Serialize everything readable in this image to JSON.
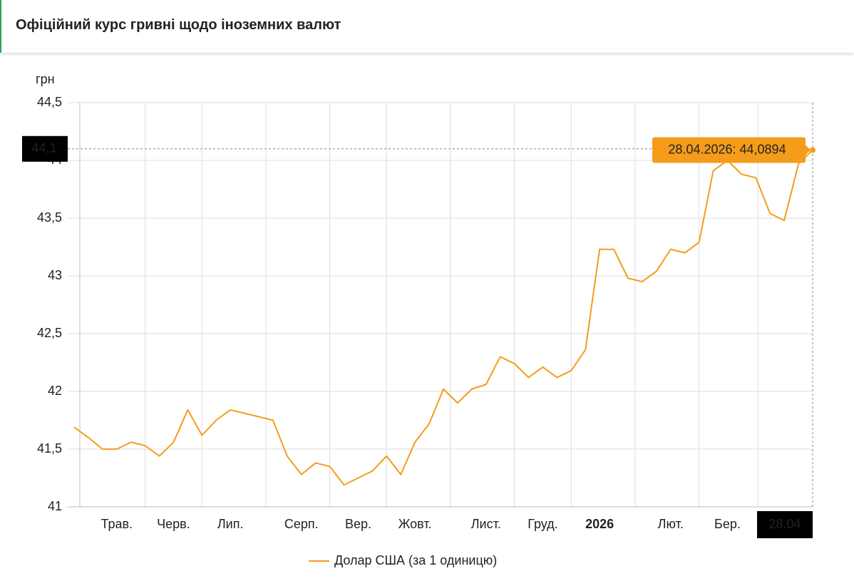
{
  "header": {
    "title": "Офіційний курс гривні щодо іноземних валют"
  },
  "chart_data": {
    "type": "line",
    "y_unit": "грн",
    "categories": [
      null,
      null,
      null,
      "Трав.",
      null,
      null,
      null,
      "Черв.",
      null,
      null,
      null,
      "Лип.",
      null,
      null,
      null,
      null,
      "Серп.",
      null,
      null,
      null,
      "Вер.",
      null,
      null,
      null,
      "Жовт.",
      null,
      null,
      null,
      null,
      "Лист.",
      null,
      null,
      null,
      "Груд.",
      null,
      null,
      null,
      "2026",
      null,
      null,
      null,
      null,
      "Лют.",
      null,
      null,
      null,
      "Бер.",
      null,
      null,
      null,
      null,
      null,
      "28.04"
    ],
    "series": [
      {
        "name": "Долар США (за 1 одиницю)",
        "color": "#f59c1a",
        "values": [
          41.69,
          41.6,
          41.5,
          41.5,
          41.56,
          41.53,
          41.44,
          41.56,
          41.84,
          41.62,
          41.75,
          41.84,
          41.81,
          41.78,
          41.75,
          41.44,
          41.28,
          41.38,
          41.35,
          41.19,
          41.25,
          41.31,
          41.44,
          41.28,
          41.56,
          41.72,
          42.02,
          41.9,
          42.02,
          42.06,
          42.3,
          42.24,
          42.12,
          42.21,
          42.12,
          42.18,
          42.36,
          43.23,
          43.23,
          42.98,
          42.95,
          43.04,
          43.23,
          43.2,
          43.29,
          43.91,
          44.0,
          43.88,
          43.85,
          43.54,
          43.48,
          43.97,
          44.0894
        ]
      }
    ],
    "ylim": [
      41,
      44.5
    ],
    "yticks": [
      41,
      {
        "value": 41.5,
        "label": "41,5"
      },
      42,
      {
        "value": 42.5,
        "label": "42,5"
      },
      43,
      {
        "value": 43.5,
        "label": "43,5"
      },
      44,
      {
        "value": 44.5,
        "label": "44,5"
      }
    ],
    "grid": true,
    "crosshair_y": {
      "value": 44.1,
      "label": "44,1"
    },
    "tooltip": "28.04.2026: 44,0894"
  }
}
